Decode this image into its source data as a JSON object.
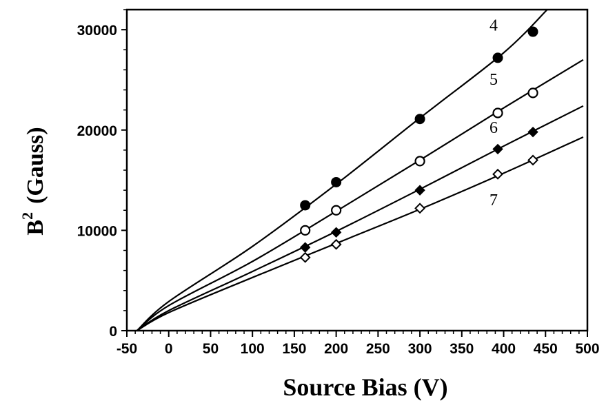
{
  "chart_data": {
    "type": "scatter",
    "xlabel": "Source Bias (V)",
    "ylabel_main": "B",
    "ylabel_sup": "2",
    "ylabel_rest": "(Gauss)",
    "xlim": [
      -50,
      500
    ],
    "ylim": [
      0,
      32000
    ],
    "x_ticks": [
      -50,
      0,
      50,
      100,
      150,
      200,
      250,
      300,
      350,
      400,
      450,
      500
    ],
    "x_tick_labels": [
      "-50",
      "0",
      "50",
      "100",
      "150",
      "200",
      "250",
      "300",
      "350",
      "400",
      "450",
      "500"
    ],
    "y_ticks": [
      0,
      10000,
      20000,
      30000
    ],
    "y_tick_labels": [
      "0",
      "10000",
      "20000",
      "30000"
    ],
    "grid": false,
    "series": [
      {
        "name": "4",
        "marker": "filled-circle",
        "points": [
          [
            163,
            12500
          ],
          [
            200,
            14800
          ],
          [
            300,
            21100
          ],
          [
            393,
            27200
          ],
          [
            435,
            29800
          ]
        ],
        "curve": [
          [
            -38,
            0
          ],
          [
            0,
            2900
          ],
          [
            100,
            8400
          ],
          [
            200,
            14600
          ],
          [
            300,
            21200
          ],
          [
            400,
            27700
          ],
          [
            452,
            32000
          ]
        ]
      },
      {
        "name": "5",
        "marker": "open-circle",
        "points": [
          [
            163,
            10000
          ],
          [
            200,
            12000
          ],
          [
            300,
            16900
          ],
          [
            393,
            21700
          ],
          [
            435,
            23700
          ]
        ],
        "curve": [
          [
            -38,
            0
          ],
          [
            0,
            2500
          ],
          [
            100,
            6900
          ],
          [
            200,
            11900
          ],
          [
            300,
            17000
          ],
          [
            400,
            22200
          ],
          [
            495,
            27000
          ]
        ]
      },
      {
        "name": "6",
        "marker": "filled-diamond",
        "points": [
          [
            163,
            8300
          ],
          [
            200,
            9800
          ],
          [
            300,
            14000
          ],
          [
            393,
            18100
          ],
          [
            435,
            19800
          ]
        ],
        "curve": [
          [
            -38,
            0
          ],
          [
            0,
            2000
          ],
          [
            100,
            5900
          ],
          [
            200,
            9900
          ],
          [
            300,
            14100
          ],
          [
            400,
            18400
          ],
          [
            495,
            22400
          ]
        ]
      },
      {
        "name": "7",
        "marker": "open-diamond",
        "points": [
          [
            163,
            7300
          ],
          [
            200,
            8600
          ],
          [
            300,
            12200
          ],
          [
            393,
            15600
          ],
          [
            435,
            17000
          ]
        ],
        "curve": [
          [
            -38,
            0
          ],
          [
            0,
            1800
          ],
          [
            100,
            5300
          ],
          [
            200,
            8700
          ],
          [
            300,
            12100
          ],
          [
            400,
            15700
          ],
          [
            495,
            19300
          ]
        ]
      }
    ],
    "curve_labels": [
      {
        "text": "4",
        "x": 388,
        "y": 29900
      },
      {
        "text": "5",
        "x": 388,
        "y": 24500
      },
      {
        "text": "6",
        "x": 388,
        "y": 19700
      },
      {
        "text": "7",
        "x": 388,
        "y": 12500
      }
    ]
  }
}
